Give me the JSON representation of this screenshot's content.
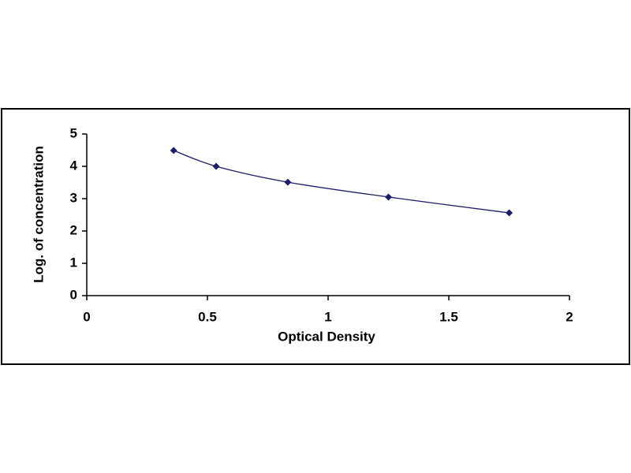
{
  "chart_data": {
    "type": "scatter",
    "x_label": "Optical Density",
    "y_label": "Log. of concentration",
    "series": [
      {
        "color": "#1c1c6b",
        "x": [
          0.36,
          0.536,
          0.833,
          1.25,
          1.75
        ],
        "values": [
          4.49,
          4.0,
          3.51,
          3.05,
          2.56
        ]
      }
    ],
    "xlim": [
      0,
      2
    ],
    "xticks": [
      0,
      0.5,
      1,
      1.5,
      2
    ],
    "ylim": [
      0,
      5
    ],
    "yticks": [
      0,
      1,
      2,
      3,
      4,
      5
    ],
    "grid": false,
    "smooth": true
  }
}
